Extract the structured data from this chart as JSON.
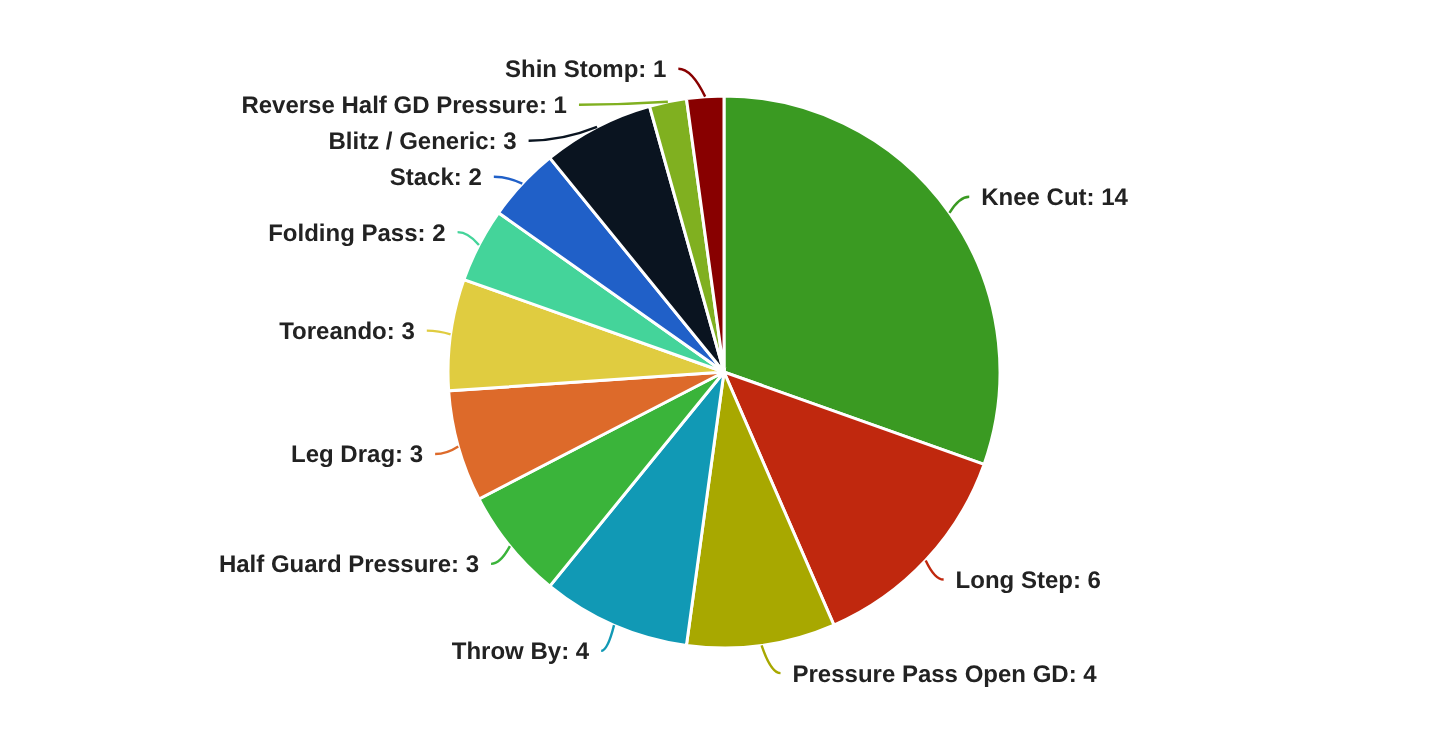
{
  "chart_data": {
    "type": "pie",
    "value_labels": [
      ": 14",
      ": 6",
      ": 4",
      ": 4",
      ": 3",
      ": 3",
      ": 3",
      ": 2",
      ": 2",
      ": 3",
      ": 1",
      ": 1"
    ],
    "categories": [
      "Knee Cut",
      "Long Step",
      "Pressure Pass Open GD",
      "Throw By",
      "Half Guard Pressure",
      "Leg Drag",
      "Toreando",
      "Folding Pass",
      "Stack",
      "Blitz / Generic",
      "Reverse Half GD Pressure",
      "Shin Stomp"
    ],
    "values": [
      14,
      6,
      4,
      4,
      3,
      3,
      3,
      2,
      2,
      3,
      1,
      1
    ],
    "colors": [
      "#3a9a22",
      "#c0280e",
      "#a8a800",
      "#1199b5",
      "#3ab43a",
      "#dd6a2a",
      "#e0cc40",
      "#44d49a",
      "#2060c8",
      "#0a1420",
      "#80b020",
      "#880000"
    ]
  }
}
